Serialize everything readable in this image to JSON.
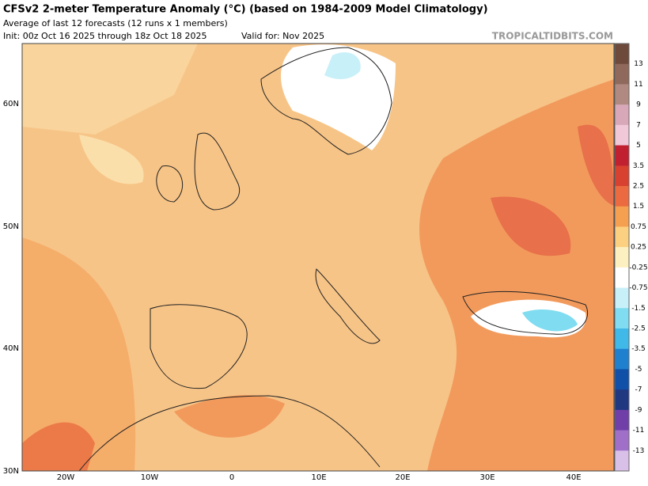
{
  "header": {
    "title": "CFSv2 2-meter Temperature Anomaly (°C) (based on 1984-2009 Model Climatology)",
    "subtitle": "Average of last 12 forecasts (12 runs x 1 members)",
    "init": "Init: 00z Oct 16 2025 through 18z Oct 18 2025",
    "valid": "Valid for: Nov 2025",
    "source": "TROPICALTIDBITS.COM"
  },
  "map": {
    "lat_labels": [
      "60N",
      "50N",
      "40N",
      "30N"
    ],
    "lon_labels": [
      "20W",
      "10W",
      "0",
      "10E",
      "20E",
      "30E",
      "40E"
    ]
  },
  "colorbar": {
    "colors": [
      "#6e4a3c",
      "#8f6a5c",
      "#b08a80",
      "#d8a8b8",
      "#f0c8d8",
      "#c02030",
      "#d84030",
      "#ec6a40",
      "#f5a050",
      "#fbd080",
      "#fdf0c0",
      "#ffffff",
      "#c8f0f8",
      "#80dcf0",
      "#40b8e8",
      "#2080d0",
      "#1050a8",
      "#203880",
      "#7040a8",
      "#a070c8",
      "#d8c0e8"
    ],
    "labels": [
      "13",
      "11",
      "9",
      "7",
      "5",
      "3.5",
      "2.5",
      "1.5",
      "0.75",
      "0.25",
      "-0.25",
      "-0.75",
      "-1.5",
      "-2.5",
      "-3.5",
      "-5",
      "-7",
      "-9",
      "-11",
      "-13"
    ]
  }
}
